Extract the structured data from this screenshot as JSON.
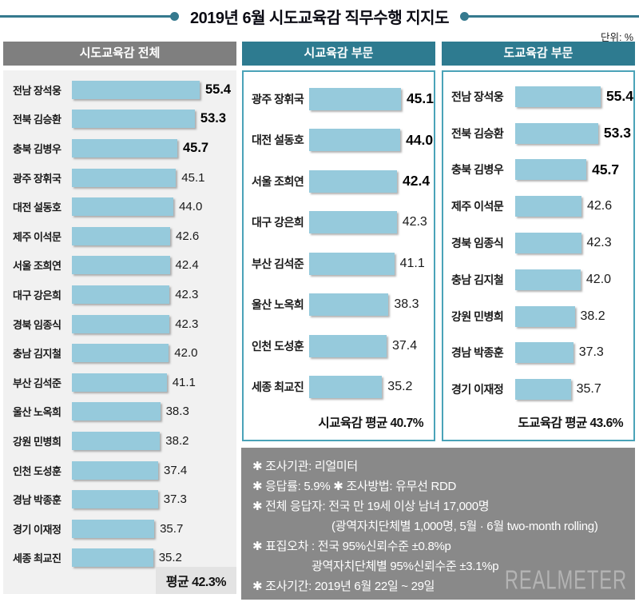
{
  "title": "2019년 6월 시도교육감 직무수행 지지도",
  "unit_label": "단위: %",
  "colors": {
    "accent_teal": "#2e7b90",
    "line_teal": "#35798e",
    "panel_border": "#4aa3b8",
    "bar_fill": "#96cadc",
    "header_gray": "#7f7f7f",
    "notes_bg": "#898989",
    "avg_box_bg": "#e3e3e3"
  },
  "chart_data": [
    {
      "type": "bar",
      "orientation": "horizontal",
      "title": "시도교육감 전체",
      "categories": [
        "전남 장석웅",
        "전북 김승환",
        "충북 김병우",
        "광주 장휘국",
        "대전 설동호",
        "제주 이석문",
        "서울 조희연",
        "대구 강은희",
        "경북 임종식",
        "충남 김지철",
        "부산 김석준",
        "울산 노옥희",
        "강원 민병희",
        "인천 도성훈",
        "경남 박종훈",
        "경기 이재정",
        "세종 최교진"
      ],
      "values": [
        55.4,
        53.3,
        45.7,
        45.1,
        44.0,
        42.6,
        42.4,
        42.3,
        42.3,
        42.0,
        41.1,
        38.3,
        38.2,
        37.4,
        37.3,
        35.7,
        35.2
      ],
      "bold_top_n": 3,
      "average": 42.3,
      "average_label": "평균 42.3%",
      "unit": "%",
      "xlim": [
        0,
        60
      ],
      "grid": false,
      "legend": false
    },
    {
      "type": "bar",
      "orientation": "horizontal",
      "title": "시교육감 부문",
      "categories": [
        "광주 장휘국",
        "대전 설동호",
        "서울 조희연",
        "대구 강은희",
        "부산 김석준",
        "울산 노옥희",
        "인천 도성훈",
        "세종 최교진"
      ],
      "values": [
        45.1,
        44.0,
        42.4,
        42.3,
        41.1,
        38.3,
        37.4,
        35.2
      ],
      "bold_top_n": 3,
      "average": 40.7,
      "average_label": "시교육감 평균 40.7%",
      "unit": "%",
      "xlim": [
        0,
        50
      ],
      "grid": false,
      "legend": false
    },
    {
      "type": "bar",
      "orientation": "horizontal",
      "title": "도교육감 부문",
      "categories": [
        "전남 장석웅",
        "전북 김승환",
        "충북 김병우",
        "제주 이석문",
        "경북 임종식",
        "충남 김지철",
        "강원 민병희",
        "경남 박종훈",
        "경기 이재정"
      ],
      "values": [
        55.4,
        53.3,
        45.7,
        42.6,
        42.3,
        42.0,
        38.2,
        37.3,
        35.7
      ],
      "bold_top_n": 3,
      "average": 43.6,
      "average_label": "도교육감 평균 43.6%",
      "unit": "%",
      "xlim": [
        0,
        60
      ],
      "grid": false,
      "legend": false
    }
  ],
  "notes": [
    {
      "text": "✱ 조사기관: 리얼미터",
      "indent": 0
    },
    {
      "text": "✱ 응답률: 5.9% ✱ 조사방법: 유무선 RDD",
      "indent": 0
    },
    {
      "text": "✱ 전체 응답자: 전국 만 19세 이상 남녀 17,000명",
      "indent": 0
    },
    {
      "text": "(광역자치단체별 1,000명, 5월 · 6월 two-month rolling)",
      "indent": 2
    },
    {
      "text": "✱ 표집오차 : 전국 95%신뢰수준 ±0.8%p",
      "indent": 0
    },
    {
      "text": "광역자치단체별 95%신뢰수준 ±3.1%p",
      "indent": 1
    },
    {
      "text": "✱ 조사기간: 2019년 6월 22일 ~ 29일",
      "indent": 0
    }
  ],
  "logo_text": "REALMETER"
}
